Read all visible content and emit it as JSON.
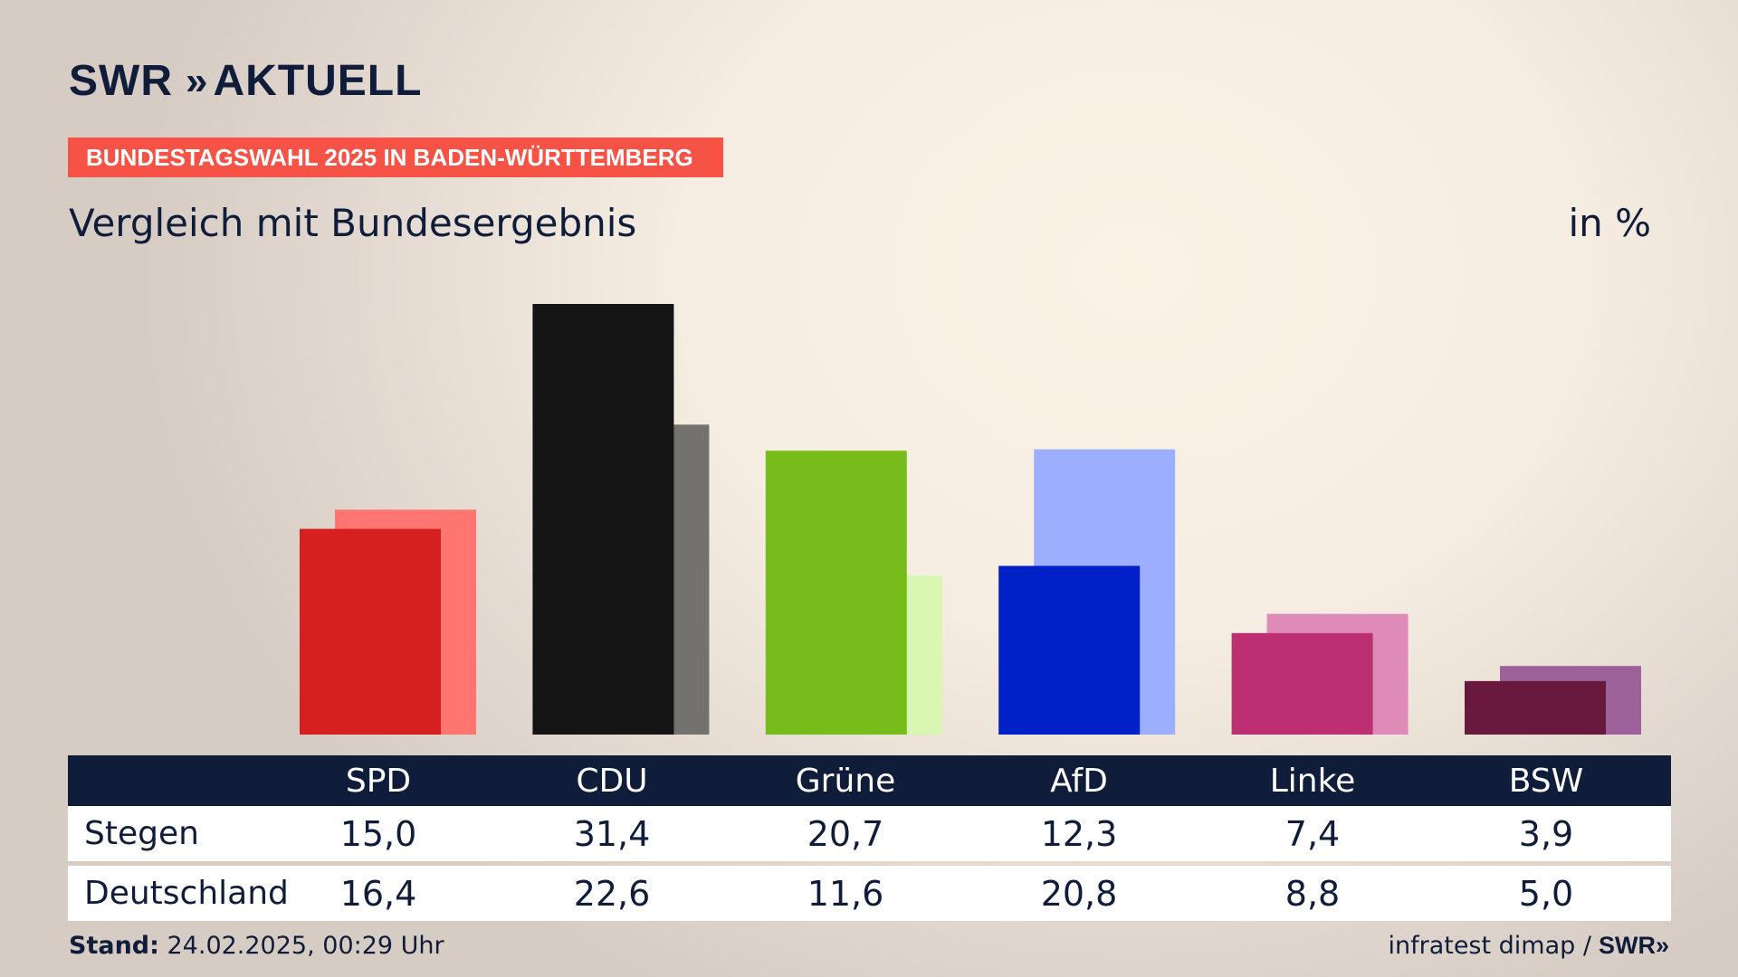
{
  "brand": {
    "logo_text": "SWR",
    "logo_chevrons": "»",
    "logo_section": "AKTUELL"
  },
  "badge": "BUNDESTAGSWAHL 2025 IN BADEN-WÜRTTEMBERG",
  "subtitle": "Vergleich mit Bundesergebnis",
  "unit": "in %",
  "chart_data": {
    "type": "bar",
    "categories": [
      "SPD",
      "CDU",
      "Grüne",
      "AfD",
      "Linke",
      "BSW"
    ],
    "series": [
      {
        "name": "Stegen",
        "values": [
          15.0,
          31.4,
          20.7,
          12.3,
          7.4,
          3.9
        ],
        "colors": [
          "#d62020",
          "#141414",
          "#78bc1b",
          "#0020c8",
          "#bc2f73",
          "#6a193e"
        ]
      },
      {
        "name": "Deutschland",
        "values": [
          16.4,
          22.6,
          11.6,
          20.8,
          8.8,
          5.0
        ],
        "colors": [
          "#ff7570",
          "#74726f",
          "#d9f7b2",
          "#9eaeff",
          "#df8bb7",
          "#9c6299"
        ]
      }
    ],
    "value_labels": [
      [
        "15,0",
        "31,4",
        "20,7",
        "12,3",
        "7,4",
        "3,9"
      ],
      [
        "16,4",
        "22,6",
        "11,6",
        "20,8",
        "8,8",
        "5,0"
      ]
    ],
    "ylim": [
      0,
      31.4
    ]
  },
  "footer": {
    "stand_label": "Stand:",
    "stand_value": " 24.02.2025, 00:29 Uhr",
    "source": "infratest dimap /",
    "source_logo": "SWR»"
  }
}
